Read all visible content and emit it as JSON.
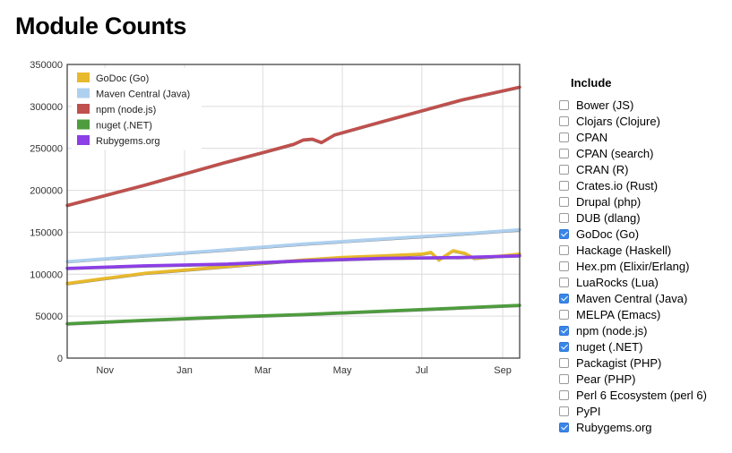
{
  "title": "Module Counts",
  "include": {
    "title": "Include",
    "items": [
      {
        "label": "Bower (JS)",
        "checked": false
      },
      {
        "label": "Clojars (Clojure)",
        "checked": false
      },
      {
        "label": "CPAN",
        "checked": false
      },
      {
        "label": "CPAN (search)",
        "checked": false
      },
      {
        "label": "CRAN (R)",
        "checked": false
      },
      {
        "label": "Crates.io (Rust)",
        "checked": false
      },
      {
        "label": "Drupal (php)",
        "checked": false
      },
      {
        "label": "DUB (dlang)",
        "checked": false
      },
      {
        "label": "GoDoc (Go)",
        "checked": true
      },
      {
        "label": "Hackage (Haskell)",
        "checked": false
      },
      {
        "label": "Hex.pm (Elixir/Erlang)",
        "checked": false
      },
      {
        "label": "LuaRocks (Lua)",
        "checked": false
      },
      {
        "label": "Maven Central (Java)",
        "checked": true
      },
      {
        "label": "MELPA (Emacs)",
        "checked": false
      },
      {
        "label": "npm (node.js)",
        "checked": true
      },
      {
        "label": "nuget (.NET)",
        "checked": true
      },
      {
        "label": "Packagist (PHP)",
        "checked": false
      },
      {
        "label": "Pear (PHP)",
        "checked": false
      },
      {
        "label": "Perl 6 Ecosystem (perl 6)",
        "checked": false
      },
      {
        "label": "PyPI",
        "checked": false
      },
      {
        "label": "Rubygems.org",
        "checked": true
      }
    ]
  },
  "chart_data": {
    "type": "line",
    "title": "Module Counts",
    "xlabel": "",
    "ylabel": "",
    "x_domain": [
      "2015-10-03",
      "2016-09-14"
    ],
    "x_ticks": [
      {
        "date": "2015-11-01",
        "label": "Nov"
      },
      {
        "date": "2016-01-01",
        "label": "Jan"
      },
      {
        "date": "2016-03-01",
        "label": "Mar"
      },
      {
        "date": "2016-05-01",
        "label": "May"
      },
      {
        "date": "2016-07-01",
        "label": "Jul"
      },
      {
        "date": "2016-09-01",
        "label": "Sep"
      }
    ],
    "ylim": [
      0,
      350000
    ],
    "y_ticks": [
      0,
      50000,
      100000,
      150000,
      200000,
      250000,
      300000,
      350000
    ],
    "grid": true,
    "legend_position": "top-left",
    "series": [
      {
        "name": "GoDoc (Go)",
        "color": "#e8b92c",
        "points": [
          [
            "2015-10-03",
            89000
          ],
          [
            "2015-11-01",
            95000
          ],
          [
            "2015-12-01",
            101000
          ],
          [
            "2016-01-01",
            105000
          ],
          [
            "2016-02-01",
            109000
          ],
          [
            "2016-03-01",
            113000
          ],
          [
            "2016-04-01",
            117000
          ],
          [
            "2016-05-01",
            120000
          ],
          [
            "2016-06-01",
            122000
          ],
          [
            "2016-07-01",
            124000
          ],
          [
            "2016-07-08",
            126000
          ],
          [
            "2016-07-14",
            117000
          ],
          [
            "2016-07-25",
            128000
          ],
          [
            "2016-08-03",
            125000
          ],
          [
            "2016-08-10",
            119000
          ],
          [
            "2016-09-01",
            122000
          ],
          [
            "2016-09-14",
            124000
          ]
        ]
      },
      {
        "name": "Maven Central (Java)",
        "color": "#aed0ef",
        "points": [
          [
            "2015-10-03",
            115000
          ],
          [
            "2015-12-01",
            122000
          ],
          [
            "2016-02-01",
            129000
          ],
          [
            "2016-04-01",
            136000
          ],
          [
            "2016-06-01",
            142000
          ],
          [
            "2016-08-01",
            148000
          ],
          [
            "2016-09-14",
            153000
          ]
        ]
      },
      {
        "name": "npm (node.js)",
        "color": "#c0504d",
        "points": [
          [
            "2015-10-03",
            182000
          ],
          [
            "2015-12-01",
            206000
          ],
          [
            "2016-02-01",
            233000
          ],
          [
            "2016-03-01",
            245000
          ],
          [
            "2016-03-25",
            255000
          ],
          [
            "2016-04-01",
            260000
          ],
          [
            "2016-04-08",
            261000
          ],
          [
            "2016-04-15",
            257000
          ],
          [
            "2016-04-25",
            266000
          ],
          [
            "2016-06-01",
            282000
          ],
          [
            "2016-08-01",
            308000
          ],
          [
            "2016-09-14",
            323000
          ]
        ]
      },
      {
        "name": "nuget (.NET)",
        "color": "#4e9c3e",
        "points": [
          [
            "2015-10-03",
            41000
          ],
          [
            "2015-12-01",
            45000
          ],
          [
            "2016-02-01",
            49000
          ],
          [
            "2016-04-01",
            52000
          ],
          [
            "2016-06-01",
            56000
          ],
          [
            "2016-08-01",
            60000
          ],
          [
            "2016-09-14",
            63000
          ]
        ]
      },
      {
        "name": "Rubygems.org",
        "color": "#8c3fe6",
        "points": [
          [
            "2015-10-03",
            107000
          ],
          [
            "2015-12-01",
            110000
          ],
          [
            "2016-02-01",
            112000
          ],
          [
            "2016-04-01",
            116000
          ],
          [
            "2016-06-01",
            119000
          ],
          [
            "2016-08-01",
            120000
          ],
          [
            "2016-09-14",
            122000
          ]
        ]
      }
    ]
  }
}
